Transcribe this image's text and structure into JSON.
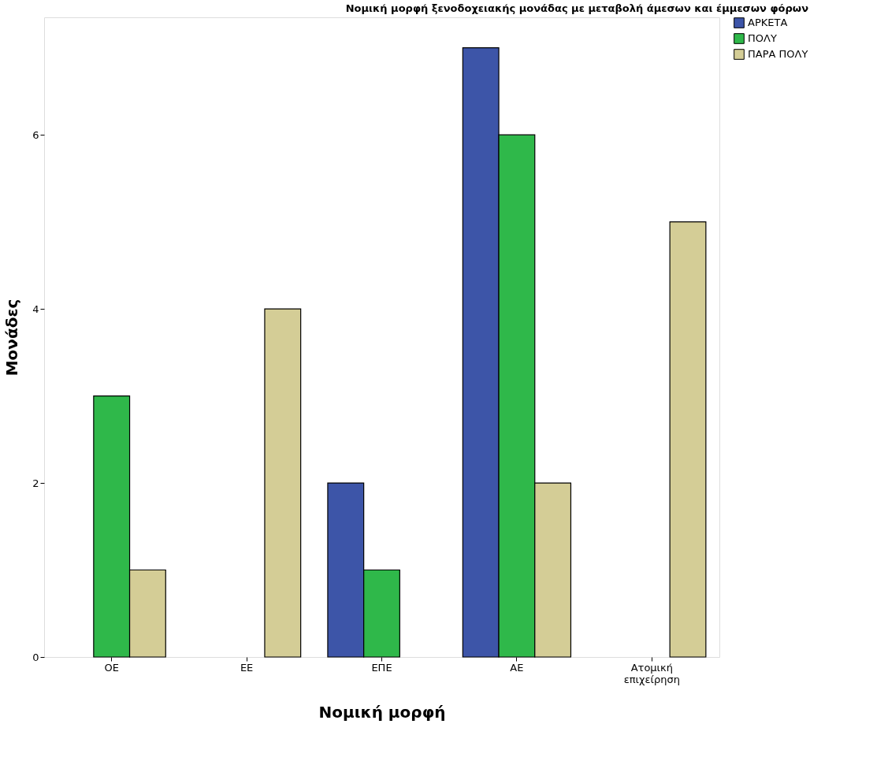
{
  "chart_data": {
    "type": "bar",
    "title": "Νομική μορφή ξενοδοχειακής μονάδας με μεταβολή άμεσων και έμμεσων φόρων",
    "xlabel": "Νομική μορφή",
    "ylabel": "Μονάδες",
    "categories": [
      "ΟΕ",
      "ΕΕ",
      "ΕΠΕ",
      "ΑΕ",
      "Ατομική επιχείρηση"
    ],
    "series": [
      {
        "name": "ΑΡΚΕΤΑ",
        "color": "#3d55a8",
        "values": [
          null,
          null,
          2,
          7,
          null
        ]
      },
      {
        "name": "ΠΟΛΥ",
        "color": "#2fb84a",
        "values": [
          3,
          null,
          1,
          6,
          null
        ]
      },
      {
        "name": "ΠΑΡΑ ΠΟΛΥ",
        "color": "#d4cd96",
        "values": [
          1,
          4,
          null,
          2,
          5
        ]
      }
    ],
    "ylim": [
      0,
      7.35
    ],
    "yticks": [
      0,
      2,
      4,
      6
    ],
    "grid": false,
    "legend": "top right"
  }
}
